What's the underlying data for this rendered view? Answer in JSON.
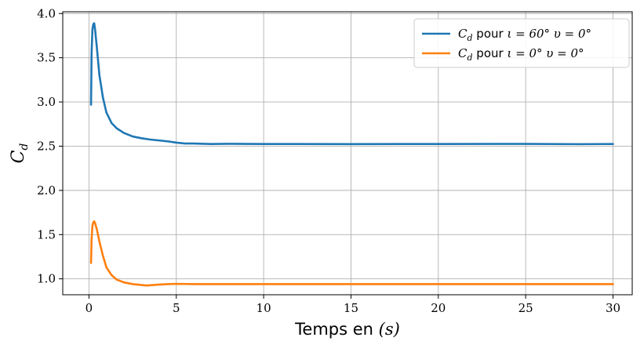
{
  "chart_data": {
    "type": "line",
    "title": "",
    "xlabel": "Temps en (s)",
    "xlabel_parts": {
      "text": "Temps en ",
      "math": "(s)"
    },
    "ylabel": "C_d",
    "ylabel_parts": {
      "main": "C",
      "sub": "d"
    },
    "xlim": [
      -1.5,
      31.1
    ],
    "ylim": [
      0.82,
      4.02
    ],
    "xticks": [
      0,
      5,
      10,
      15,
      20,
      25,
      30
    ],
    "xtick_labels": [
      "0",
      "5",
      "10",
      "15",
      "20",
      "25",
      "30"
    ],
    "yticks": [
      1.0,
      1.5,
      2.0,
      2.5,
      3.0,
      3.5,
      4.0
    ],
    "ytick_labels": [
      "1.0",
      "1.5",
      "2.0",
      "2.5",
      "3.0",
      "3.5",
      "4.0"
    ],
    "grid": true,
    "legend_position": "top-right",
    "series": [
      {
        "name": "C_d pour ι = 60°    υ = 0°",
        "legend": {
          "c": "C",
          "sub": "d",
          "word": " pour ",
          "rest": "ι = 60°    υ = 0°"
        },
        "color": "#1f77b4",
        "x": [
          0.12,
          0.15,
          0.2,
          0.25,
          0.3,
          0.35,
          0.45,
          0.6,
          0.8,
          1.0,
          1.3,
          1.6,
          2.0,
          2.5,
          3.0,
          3.5,
          4.0,
          4.5,
          5.0,
          5.5,
          6.0,
          7.0,
          8.0,
          10.0,
          15.0,
          20.0,
          25.0,
          28.0,
          30.0
        ],
        "y": [
          2.97,
          3.55,
          3.82,
          3.88,
          3.89,
          3.82,
          3.62,
          3.3,
          3.05,
          2.88,
          2.76,
          2.7,
          2.65,
          2.61,
          2.59,
          2.575,
          2.565,
          2.555,
          2.54,
          2.53,
          2.53,
          2.525,
          2.527,
          2.525,
          2.524,
          2.525,
          2.526,
          2.523,
          2.525
        ]
      },
      {
        "name": "C_d pour ι = 0°    υ = 0°",
        "legend": {
          "c": "C",
          "sub": "d",
          "word": " pour ",
          "rest": "ι = 0°    υ = 0°"
        },
        "color": "#ff7f0e",
        "x": [
          0.12,
          0.15,
          0.2,
          0.25,
          0.3,
          0.35,
          0.45,
          0.6,
          0.8,
          1.0,
          1.3,
          1.6,
          2.0,
          2.5,
          3.0,
          3.3,
          3.7,
          4.0,
          4.5,
          5.0,
          5.5,
          6.0,
          7.0,
          10.0,
          15.0,
          20.0,
          25.0,
          30.0
        ],
        "y": [
          1.18,
          1.45,
          1.6,
          1.64,
          1.65,
          1.63,
          1.56,
          1.42,
          1.26,
          1.13,
          1.04,
          0.99,
          0.96,
          0.94,
          0.93,
          0.925,
          0.93,
          0.935,
          0.94,
          0.943,
          0.942,
          0.94,
          0.94,
          0.94,
          0.94,
          0.94,
          0.94,
          0.94
        ]
      }
    ]
  }
}
